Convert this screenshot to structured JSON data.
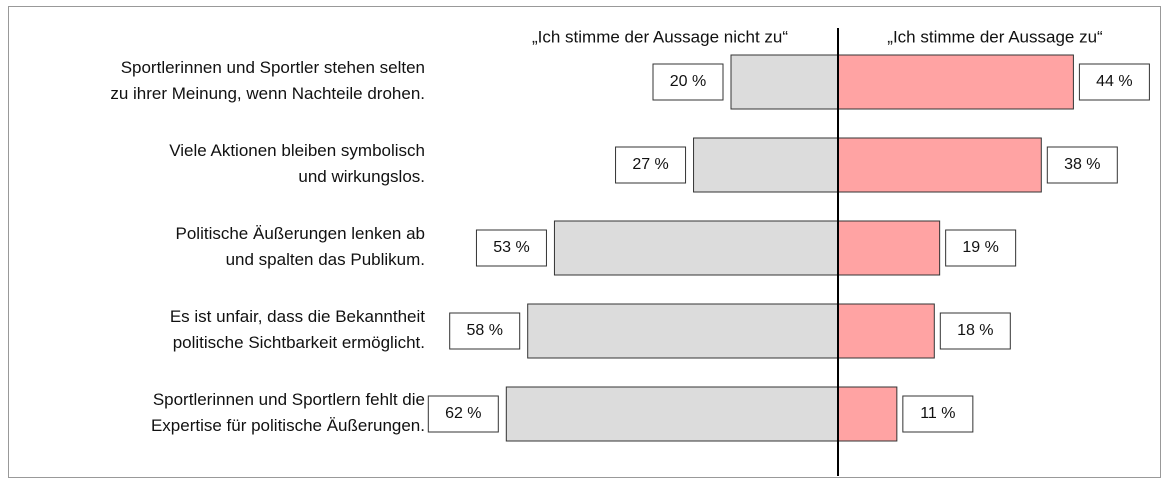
{
  "chart_data": {
    "type": "diverging-bar",
    "categories": [
      "Sportlerinnen und Sportler stehen selten\nzu ihrer Meinung, wenn Nachteile drohen.",
      "Viele Aktionen bleiben symbolisch\nund wirkungslos.",
      "Politische Äußerungen lenken ab\nund spalten das Publikum.",
      "Es ist unfair, dass die Bekanntheit\npolitische Sichtbarkeit ermöglicht.",
      "Sportlerinnen und Sportlern fehlt die\nExpertise für politische Äußerungen."
    ],
    "series": [
      {
        "name": "„Ich stimme der Aussage nicht zu“",
        "color": "#dcdcdc",
        "side": "left",
        "values": [
          20,
          27,
          53,
          58,
          62
        ],
        "value_labels": [
          "20 %",
          "27 %",
          "53 %",
          "58 %",
          "62 %"
        ]
      },
      {
        "name": "„Ich stimme der Aussage zu“",
        "color": "#ffa3a3",
        "side": "right",
        "values": [
          44,
          38,
          19,
          18,
          11
        ],
        "value_labels": [
          "44 %",
          "38 %",
          "19 %",
          "18 %",
          "11 %"
        ]
      }
    ]
  }
}
